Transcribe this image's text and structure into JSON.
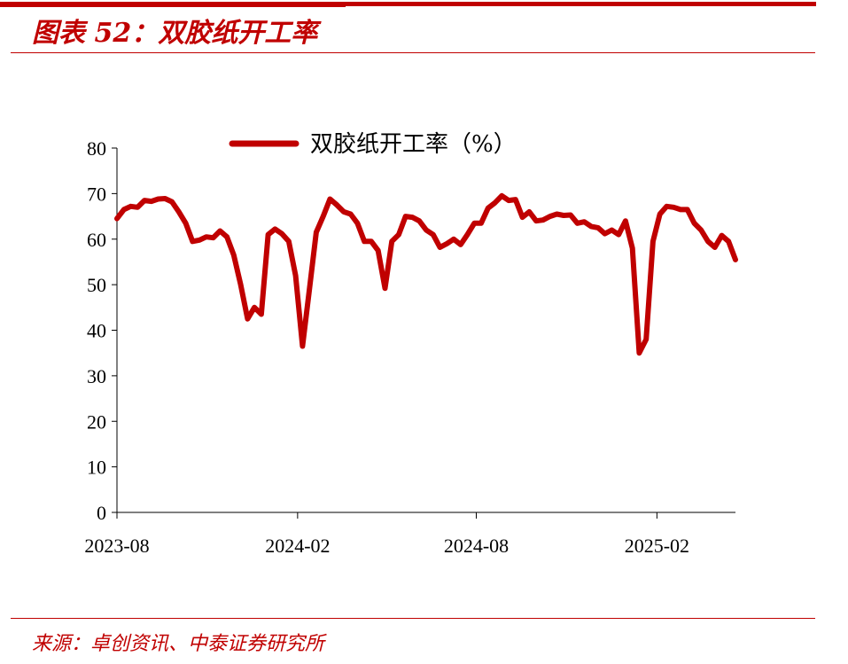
{
  "header": {
    "title": "图表 52：双胶纸开工率"
  },
  "footer": {
    "source": "来源：卓创资讯、中泰证券研究所"
  },
  "chart_data": {
    "type": "line",
    "series": [
      {
        "name": "双胶纸开工率（%）",
        "color": "#c00000",
        "points": [
          [
            "2023-08-01",
            64.5
          ],
          [
            "2023-08-08",
            66.5
          ],
          [
            "2023-08-15",
            67.2
          ],
          [
            "2023-08-22",
            67.0
          ],
          [
            "2023-08-29",
            68.5
          ],
          [
            "2023-09-05",
            68.3
          ],
          [
            "2023-09-12",
            68.8
          ],
          [
            "2023-09-19",
            68.9
          ],
          [
            "2023-09-26",
            68.2
          ],
          [
            "2023-10-03",
            66.0
          ],
          [
            "2023-10-10",
            63.5
          ],
          [
            "2023-10-17",
            59.5
          ],
          [
            "2023-10-24",
            59.8
          ],
          [
            "2023-10-31",
            60.5
          ],
          [
            "2023-11-07",
            60.3
          ],
          [
            "2023-11-14",
            61.8
          ],
          [
            "2023-11-21",
            60.5
          ],
          [
            "2023-11-28",
            56.5
          ],
          [
            "2023-12-05",
            50.0
          ],
          [
            "2023-12-12",
            42.5
          ],
          [
            "2023-12-19",
            45.0
          ],
          [
            "2023-12-26",
            43.5
          ],
          [
            "2024-01-02",
            61.0
          ],
          [
            "2024-01-09",
            62.2
          ],
          [
            "2024-01-16",
            61.2
          ],
          [
            "2024-01-23",
            59.5
          ],
          [
            "2024-01-30",
            52.0
          ],
          [
            "2024-02-06",
            36.5
          ],
          [
            "2024-02-13",
            49.0
          ],
          [
            "2024-02-20",
            61.5
          ],
          [
            "2024-02-27",
            65.0
          ],
          [
            "2024-03-05",
            68.8
          ],
          [
            "2024-03-12",
            67.5
          ],
          [
            "2024-03-19",
            66.0
          ],
          [
            "2024-03-26",
            65.5
          ],
          [
            "2024-04-02",
            63.5
          ],
          [
            "2024-04-09",
            59.5
          ],
          [
            "2024-04-16",
            59.5
          ],
          [
            "2024-04-23",
            57.5
          ],
          [
            "2024-04-30",
            49.2
          ],
          [
            "2024-05-07",
            59.5
          ],
          [
            "2024-05-14",
            61.0
          ],
          [
            "2024-05-21",
            65.0
          ],
          [
            "2024-05-28",
            64.8
          ],
          [
            "2024-06-04",
            64.0
          ],
          [
            "2024-06-11",
            62.0
          ],
          [
            "2024-06-18",
            61.0
          ],
          [
            "2024-06-25",
            58.2
          ],
          [
            "2024-07-02",
            59.0
          ],
          [
            "2024-07-09",
            60.0
          ],
          [
            "2024-07-16",
            58.8
          ],
          [
            "2024-07-23",
            61.0
          ],
          [
            "2024-07-30",
            63.5
          ],
          [
            "2024-08-06",
            63.5
          ],
          [
            "2024-08-13",
            66.8
          ],
          [
            "2024-08-20",
            68.0
          ],
          [
            "2024-08-27",
            69.5
          ],
          [
            "2024-09-03",
            68.5
          ],
          [
            "2024-09-10",
            68.7
          ],
          [
            "2024-09-17",
            64.8
          ],
          [
            "2024-09-24",
            66.0
          ],
          [
            "2024-10-01",
            64.0
          ],
          [
            "2024-10-08",
            64.2
          ],
          [
            "2024-10-15",
            65.0
          ],
          [
            "2024-10-22",
            65.5
          ],
          [
            "2024-10-29",
            65.2
          ],
          [
            "2024-11-05",
            65.3
          ],
          [
            "2024-11-12",
            63.5
          ],
          [
            "2024-11-19",
            63.8
          ],
          [
            "2024-11-26",
            62.8
          ],
          [
            "2024-12-03",
            62.5
          ],
          [
            "2024-12-10",
            61.2
          ],
          [
            "2024-12-17",
            62.0
          ],
          [
            "2024-12-24",
            61.0
          ],
          [
            "2024-12-31",
            64.0
          ],
          [
            "2025-01-07",
            58.0
          ],
          [
            "2025-01-14",
            35.0
          ],
          [
            "2025-01-21",
            38.0
          ],
          [
            "2025-01-28",
            59.5
          ],
          [
            "2025-02-04",
            65.5
          ],
          [
            "2025-02-11",
            67.2
          ],
          [
            "2025-02-18",
            67.0
          ],
          [
            "2025-02-25",
            66.5
          ],
          [
            "2025-03-04",
            66.5
          ],
          [
            "2025-03-11",
            63.5
          ],
          [
            "2025-03-18",
            62.0
          ],
          [
            "2025-03-25",
            59.5
          ],
          [
            "2025-04-01",
            58.2
          ],
          [
            "2025-04-08",
            60.8
          ],
          [
            "2025-04-15",
            59.5
          ],
          [
            "2025-04-22",
            55.5
          ]
        ]
      }
    ],
    "x_range": [
      "2023-08-01",
      "2025-04-22"
    ],
    "xticks": [
      "2023-08",
      "2024-02",
      "2024-08",
      "2025-02"
    ],
    "ylim": [
      0,
      80
    ],
    "yticks": [
      0,
      10,
      20,
      30,
      40,
      50,
      60,
      70,
      80
    ],
    "grid": false,
    "legend_position": "top"
  }
}
